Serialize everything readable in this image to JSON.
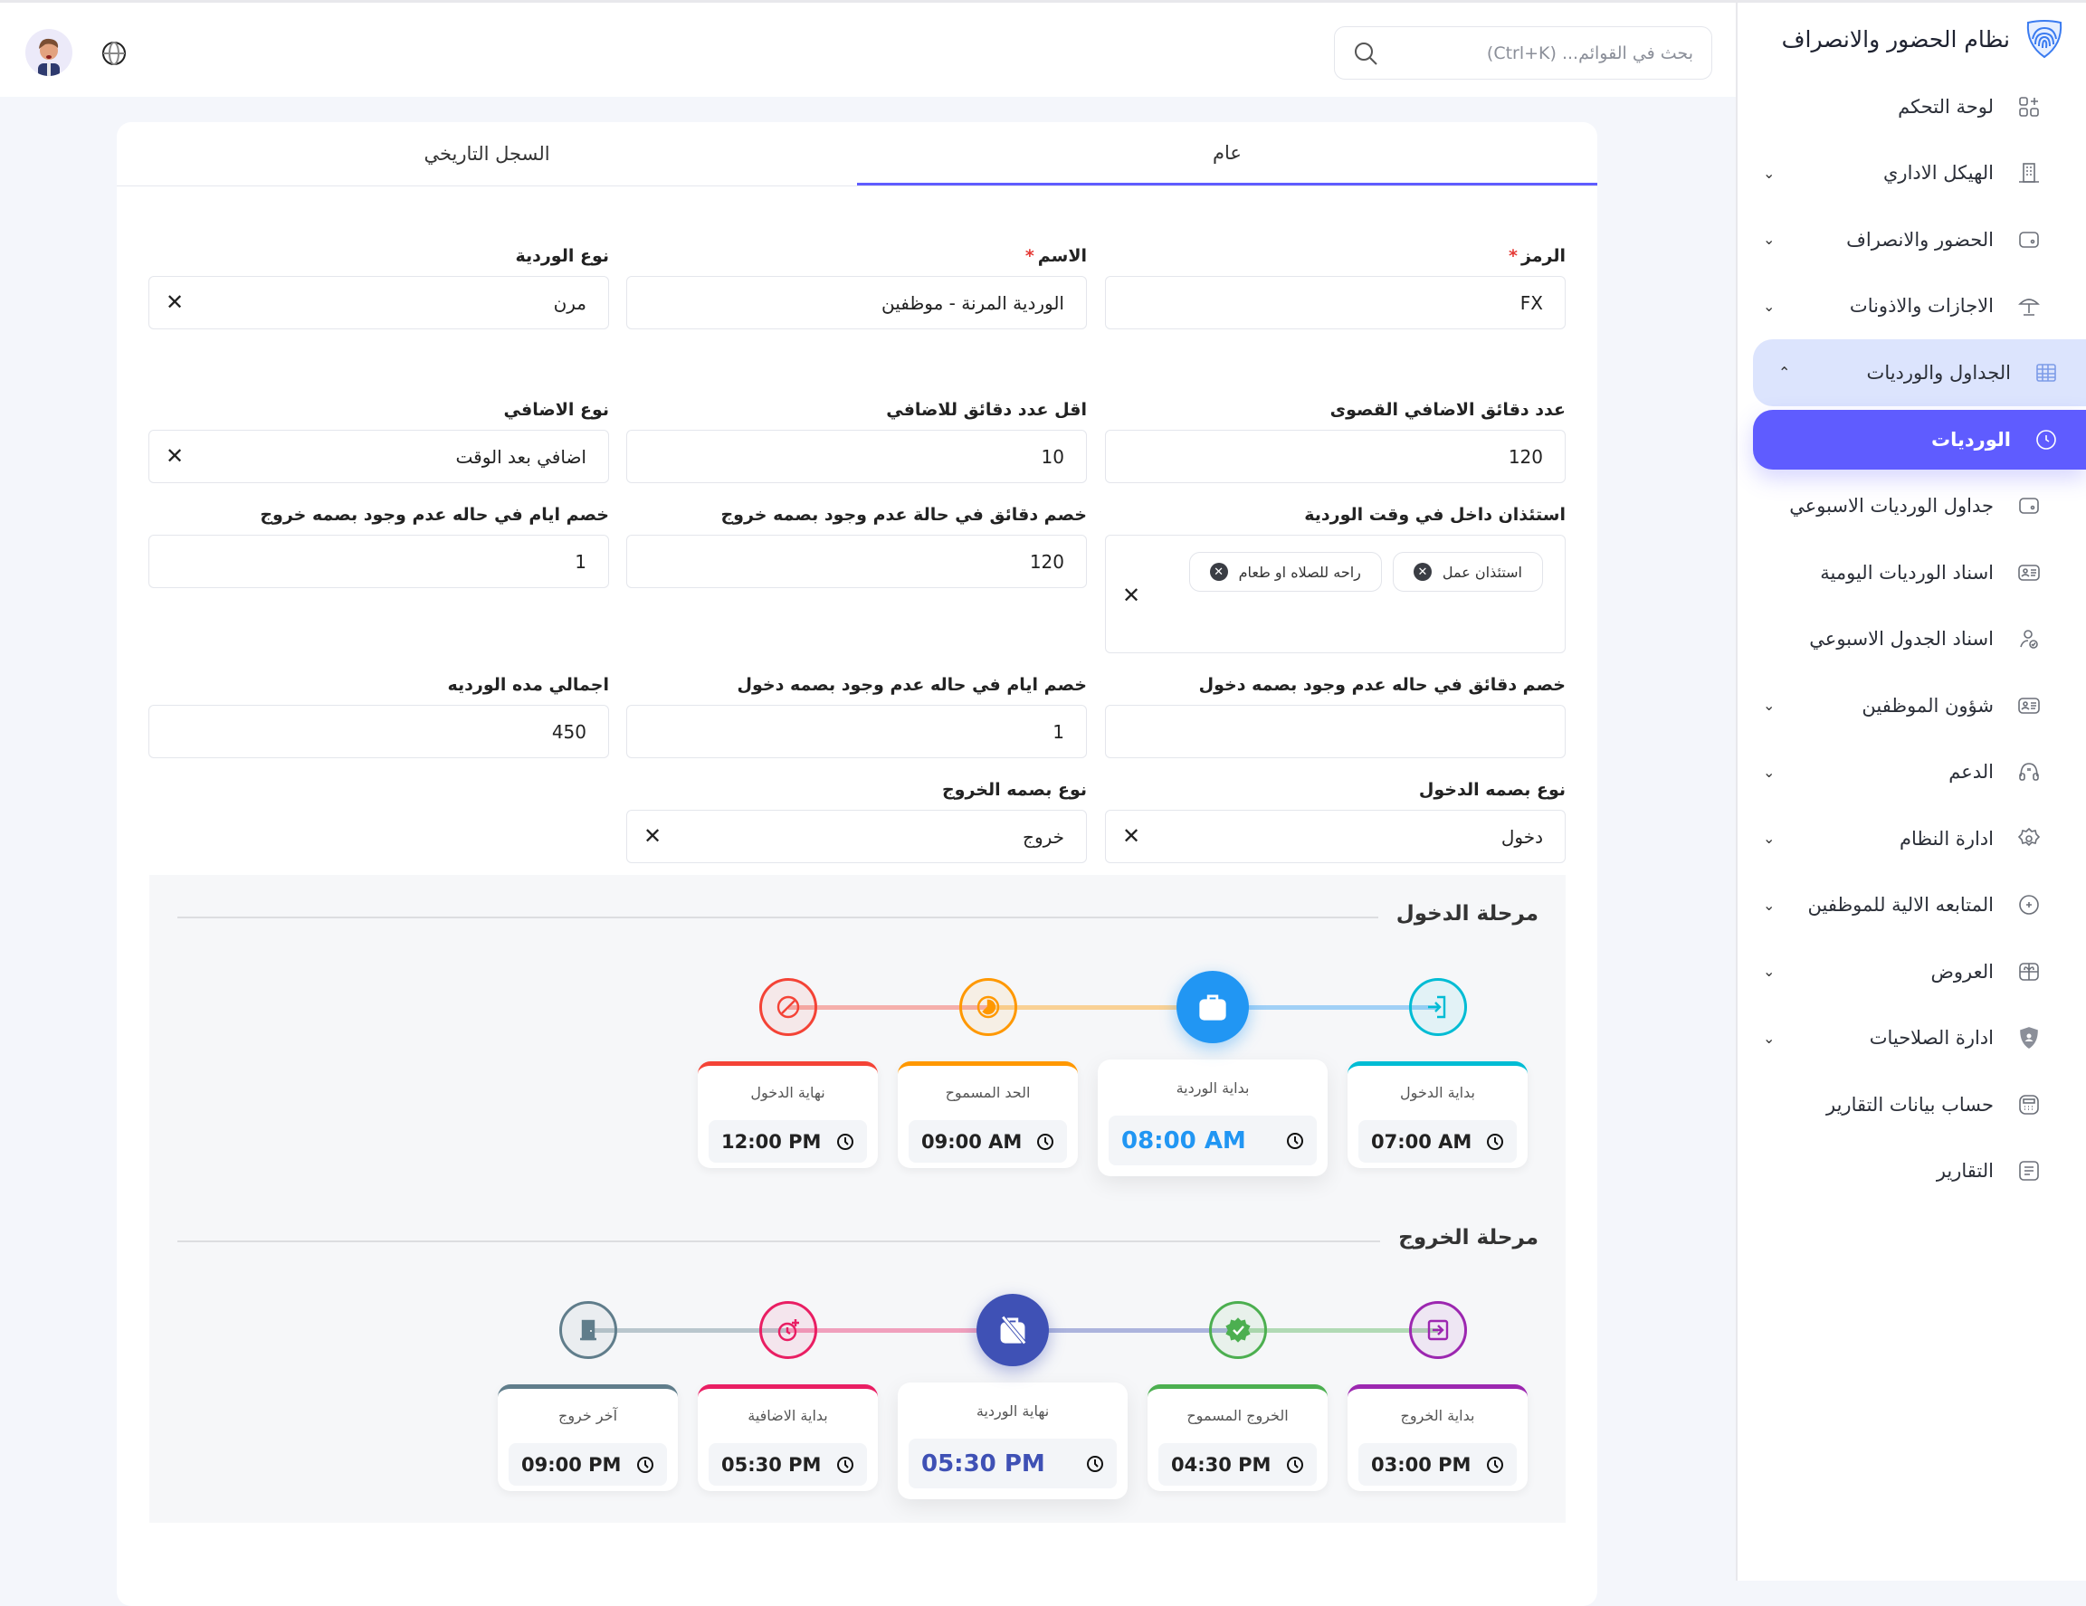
{
  "header": {
    "search_placeholder": "بحث في القوائم... (Ctrl+K)",
    "search_icon": "search-icon",
    "language_icon": "globe-icon",
    "avatar": "user-avatar"
  },
  "sidebar": {
    "title": "نظام الحضور والانصراف",
    "logo_icon": "fingerprint-shield-icon",
    "items": [
      {
        "label": "لوحة التحكم",
        "icon": "dashboard-icon",
        "chevron": ""
      },
      {
        "label": "الهيكل الاداري",
        "icon": "building-icon",
        "chevron": "⌄"
      },
      {
        "label": "الحضور والانصراف",
        "icon": "wallet-icon",
        "chevron": "⌄"
      },
      {
        "label": "الاجازات والاذونات",
        "icon": "umbrella-icon",
        "chevron": "⌄"
      },
      {
        "label": "الجداول والورديات",
        "icon": "table-icon",
        "chevron": "⌃",
        "state": "open"
      },
      {
        "label": "الورديات",
        "icon": "clock-icon",
        "chevron": "",
        "state": "active"
      },
      {
        "label": "جداول الورديات الاسبوعي",
        "icon": "wallet-icon",
        "chevron": ""
      },
      {
        "label": "اسناد الورديات اليومية",
        "icon": "id-card-icon",
        "chevron": ""
      },
      {
        "label": "اسناد الجدول الاسبوعي",
        "icon": "user-check-icon",
        "chevron": ""
      },
      {
        "label": "شؤون الموظفين",
        "icon": "id-card-icon",
        "chevron": "⌄"
      },
      {
        "label": "الدعم",
        "icon": "headset-icon",
        "chevron": "⌄"
      },
      {
        "label": "ادارة النظام",
        "icon": "gear-icon",
        "chevron": "⌄"
      },
      {
        "label": "المتابعه الالية للموظفين",
        "icon": "target-icon",
        "chevron": "⌄"
      },
      {
        "label": "العروض",
        "icon": "gift-icon",
        "chevron": "⌄"
      },
      {
        "label": "ادارة الصلاحيات",
        "icon": "shield-user-icon",
        "chevron": "⌄"
      },
      {
        "label": "حساب بيانات التقارير",
        "icon": "calculator-icon",
        "chevron": ""
      },
      {
        "label": "التقارير",
        "icon": "document-icon",
        "chevron": ""
      }
    ]
  },
  "tabs": [
    {
      "label": "عام",
      "active": true
    },
    {
      "label": "السجل التاريخي",
      "active": false
    }
  ],
  "form": {
    "code": {
      "label": "الرمز",
      "required": "*",
      "value": "FX"
    },
    "name": {
      "label": "الاسم",
      "required": "*",
      "value": "الوردية المرنة - موظفين"
    },
    "shift_type": {
      "label": "نوع الوردية",
      "value": "مرن"
    },
    "max_overtime": {
      "label": "عدد دقائق الاضافي القصوى",
      "value": "120"
    },
    "min_overtime": {
      "label": "اقل عدد دقائق للاضافي",
      "value": "10"
    },
    "overtime_type": {
      "label": "نوع الاضافي",
      "value": "اضافي بعد الوقت"
    },
    "permissions": {
      "label": "استئذان داخل في وقت الوردية",
      "chips": [
        "استئذان عمل",
        "راحه للصلاه او طعام"
      ]
    },
    "deduct_min_no_out": {
      "label": "خصم دقائق في حالة عدم وجود بصمه خروج",
      "value": "120"
    },
    "deduct_days_no_out": {
      "label": "خصم ايام في حاله عدم وجود بصمه خروج",
      "value": "1"
    },
    "deduct_min_no_in": {
      "label": "خصم دقائق في حاله عدم وجود بصمه دخول",
      "value": ""
    },
    "deduct_days_no_in": {
      "label": "خصم ايام في حاله عدم وجود بصمه دخول",
      "value": "1"
    },
    "total_duration": {
      "label": "اجمالي مده الورديه",
      "value": "450"
    },
    "in_punch_type": {
      "label": "نوع بصمه الدخول",
      "value": "دخول"
    },
    "out_punch_type": {
      "label": "نوع بصمه الخروج",
      "value": "خروج"
    }
  },
  "entry_phase": {
    "title": "مرحلة الدخول",
    "steps": [
      {
        "label": "بداية الدخول",
        "time": "07:00 AM",
        "color": "#00bcd4",
        "icon": "login-icon"
      },
      {
        "label": "بداية الوردية",
        "time": "08:00 AM",
        "color": "#2196f3",
        "icon": "briefcase-icon",
        "main": true
      },
      {
        "label": "الحد المسموح",
        "time": "09:00 AM",
        "color": "#ff9800",
        "icon": "timelapse-icon"
      },
      {
        "label": "نهاية الدخول",
        "time": "12:00 PM",
        "color": "#f44336",
        "icon": "block-icon"
      }
    ]
  },
  "exit_phase": {
    "title": "مرحلة الخروج",
    "steps": [
      {
        "label": "بداية الخروج",
        "time": "03:00 PM",
        "color": "#9c27b0",
        "icon": "exit-icon"
      },
      {
        "label": "الخروج المسموح",
        "time": "04:30 PM",
        "color": "#4caf50",
        "icon": "verified-icon"
      },
      {
        "label": "نهاية الوردية",
        "time": "05:30 PM",
        "color": "#3f51b5",
        "icon": "briefcase-off-icon",
        "main": true
      },
      {
        "label": "بداية الاضافية",
        "time": "05:30 PM",
        "color": "#e91e63",
        "icon": "clock-plus-icon"
      },
      {
        "label": "آخر خروج",
        "time": "09:00 PM",
        "color": "#607d8b",
        "icon": "door-icon"
      }
    ]
  }
}
